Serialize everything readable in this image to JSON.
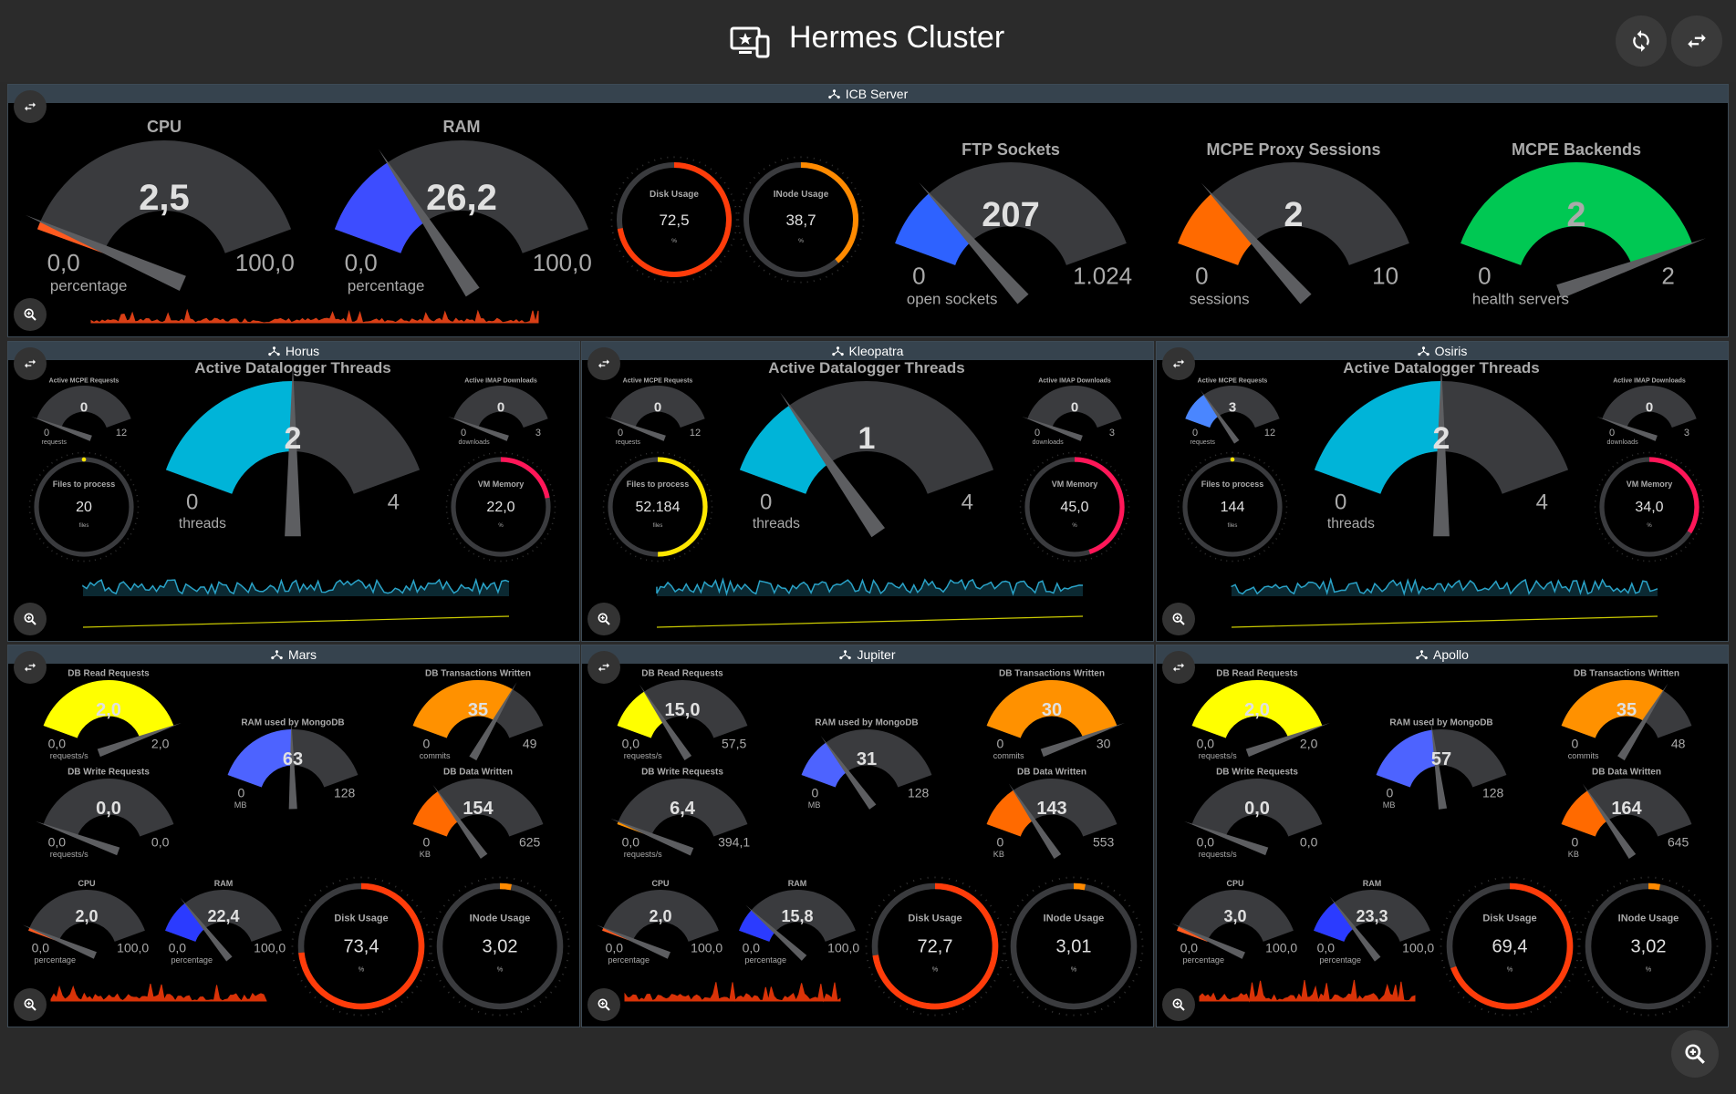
{
  "app": {
    "title": "Hermes Cluster"
  },
  "colors": {
    "track": "#3a3b3e",
    "needle": "#5d5e61",
    "bg": "#000000",
    "header": "#36434e"
  },
  "icb": {
    "title": "ICB Server",
    "cpu": {
      "title": "CPU",
      "value": "2,5",
      "min": "0,0",
      "max": "100,0",
      "unit": "percentage",
      "frac": 0.025,
      "color": "#ff5a1f"
    },
    "ram": {
      "title": "RAM",
      "value": "26,2",
      "min": "0,0",
      "max": "100,0",
      "unit": "percentage",
      "frac": 0.262,
      "color": "#3d4dff"
    },
    "disk": {
      "title": "Disk Usage",
      "value": "72,5",
      "unit": "%",
      "frac": 0.725,
      "color": "#ff3c0a"
    },
    "inode": {
      "title": "INode Usage",
      "value": "38,7",
      "unit": "%",
      "frac": 0.387,
      "color": "#ff8a00"
    },
    "ftp": {
      "title": "FTP Sockets",
      "value": "207",
      "min": "0",
      "max": "1.024",
      "unit": "open sockets",
      "frac": 0.202,
      "color": "#2e62ff"
    },
    "proxy": {
      "title": "MCPE Proxy Sessions",
      "value": "2",
      "min": "0",
      "max": "10",
      "unit": "sessions",
      "frac": 0.2,
      "color": "#ff6a00"
    },
    "backends": {
      "title": "MCPE Backends",
      "value": "2",
      "min": "0",
      "max": "2",
      "unit": "health servers",
      "frac": 1.0,
      "color": "#00c853"
    }
  },
  "loggers": [
    {
      "title": "Horus",
      "mcpe": {
        "title": "Active MCPE Requests",
        "value": "0",
        "min": "0",
        "max": "12",
        "unit": "requests",
        "frac": 0.0,
        "color": "#3f7bff"
      },
      "imap": {
        "title": "Active IMAP Downloads",
        "value": "0",
        "min": "0",
        "max": "3",
        "unit": "downloads",
        "frac": 0.0,
        "color": "#3f7bff"
      },
      "threads": {
        "title": "Active Datalogger Threads",
        "value": "2",
        "min": "0",
        "max": "4",
        "unit": "threads",
        "frac": 0.5,
        "color": "#00b4d8"
      },
      "files": {
        "title": "Files to process",
        "value": "20",
        "unit": "files",
        "frac": 0.0,
        "color": "#ffe600"
      },
      "vm": {
        "title": "VM Memory",
        "value": "22,0",
        "unit": "%",
        "frac": 0.22,
        "color": "#ff1658"
      }
    },
    {
      "title": "Kleopatra",
      "mcpe": {
        "title": "Active MCPE Requests",
        "value": "0",
        "min": "0",
        "max": "12",
        "unit": "requests",
        "frac": 0.0,
        "color": "#3f7bff"
      },
      "imap": {
        "title": "Active IMAP Downloads",
        "value": "0",
        "min": "0",
        "max": "3",
        "unit": "downloads",
        "frac": 0.0,
        "color": "#3f7bff"
      },
      "threads": {
        "title": "Active Datalogger Threads",
        "value": "1",
        "min": "0",
        "max": "4",
        "unit": "threads",
        "frac": 0.25,
        "color": "#00b4d8"
      },
      "files": {
        "title": "Files to process",
        "value": "52.184",
        "unit": "files",
        "frac": 0.5,
        "color": "#ffe600"
      },
      "vm": {
        "title": "VM Memory",
        "value": "45,0",
        "unit": "%",
        "frac": 0.45,
        "color": "#ff1658"
      }
    },
    {
      "title": "Osiris",
      "mcpe": {
        "title": "Active MCPE Requests",
        "value": "3",
        "min": "0",
        "max": "12",
        "unit": "requests",
        "frac": 0.25,
        "color": "#4a86ff"
      },
      "imap": {
        "title": "Active IMAP Downloads",
        "value": "0",
        "min": "0",
        "max": "3",
        "unit": "downloads",
        "frac": 0.0,
        "color": "#3f7bff"
      },
      "threads": {
        "title": "Active Datalogger Threads",
        "value": "2",
        "min": "0",
        "max": "4",
        "unit": "threads",
        "frac": 0.5,
        "color": "#00b4d8"
      },
      "files": {
        "title": "Files to process",
        "value": "144",
        "unit": "files",
        "frac": 0.0,
        "color": "#ffe600"
      },
      "vm": {
        "title": "VM Memory",
        "value": "34,0",
        "unit": "%",
        "frac": 0.34,
        "color": "#ff1658"
      }
    }
  ],
  "dbs": [
    {
      "title": "Mars",
      "dbread": {
        "title": "DB Read Requests",
        "value": "2,0",
        "min": "0,0",
        "max": "2,0",
        "unit": "requests/s",
        "frac": 1.0,
        "color": "#ffff00"
      },
      "dbtx": {
        "title": "DB Transactions Written",
        "value": "35",
        "min": "0",
        "max": "49",
        "unit": "commits",
        "frac": 0.714,
        "color": "#ff9100"
      },
      "mongo": {
        "title": "RAM used by MongoDB",
        "value": "63",
        "min": "0",
        "max": "128",
        "unit": "MB",
        "frac": 0.492,
        "color": "#4d63ff"
      },
      "dbwrite": {
        "title": "DB Write Requests",
        "value": "0,0",
        "min": "0,0",
        "max": "0,0",
        "unit": "requests/s",
        "frac": 0.0,
        "color": "#ff9100"
      },
      "dbdata": {
        "title": "DB Data Written",
        "value": "154",
        "min": "0",
        "max": "625",
        "unit": "KB",
        "frac": 0.246,
        "color": "#ff6a00"
      },
      "cpu": {
        "title": "CPU",
        "value": "2,0",
        "min": "0,0",
        "max": "100,0",
        "unit": "percentage",
        "frac": 0.02,
        "color": "#ff5a1f"
      },
      "ram": {
        "title": "RAM",
        "value": "22,4",
        "min": "0,0",
        "max": "100,0",
        "unit": "percentage",
        "frac": 0.224,
        "color": "#2b3bff"
      },
      "disk": {
        "title": "Disk Usage",
        "value": "73,4",
        "unit": "%",
        "frac": 0.734,
        "color": "#ff3c0a"
      },
      "inode": {
        "title": "INode Usage",
        "value": "3,02",
        "unit": "%",
        "frac": 0.03,
        "color": "#ff8a00"
      }
    },
    {
      "title": "Jupiter",
      "dbread": {
        "title": "DB Read Requests",
        "value": "15,0",
        "min": "0,0",
        "max": "57,5",
        "unit": "requests/s",
        "frac": 0.261,
        "color": "#ffff00"
      },
      "dbtx": {
        "title": "DB Transactions Written",
        "value": "30",
        "min": "0",
        "max": "30",
        "unit": "commits",
        "frac": 1.0,
        "color": "#ff9100"
      },
      "mongo": {
        "title": "RAM used by MongoDB",
        "value": "31",
        "min": "0",
        "max": "128",
        "unit": "MB",
        "frac": 0.242,
        "color": "#4d63ff"
      },
      "dbwrite": {
        "title": "DB Write Requests",
        "value": "6,4",
        "min": "0,0",
        "max": "394,1",
        "unit": "requests/s",
        "frac": 0.016,
        "color": "#ff9100"
      },
      "dbdata": {
        "title": "DB Data Written",
        "value": "143",
        "min": "0",
        "max": "553",
        "unit": "KB",
        "frac": 0.259,
        "color": "#ff6a00"
      },
      "cpu": {
        "title": "CPU",
        "value": "2,0",
        "min": "0,0",
        "max": "100,0",
        "unit": "percentage",
        "frac": 0.02,
        "color": "#ff5a1f"
      },
      "ram": {
        "title": "RAM",
        "value": "15,8",
        "min": "0,0",
        "max": "100,0",
        "unit": "percentage",
        "frac": 0.158,
        "color": "#2b3bff"
      },
      "disk": {
        "title": "Disk Usage",
        "value": "72,7",
        "unit": "%",
        "frac": 0.727,
        "color": "#ff3c0a"
      },
      "inode": {
        "title": "INode Usage",
        "value": "3,01",
        "unit": "%",
        "frac": 0.03,
        "color": "#ff8a00"
      }
    },
    {
      "title": "Apollo",
      "dbread": {
        "title": "DB Read Requests",
        "value": "2,0",
        "min": "0,0",
        "max": "2,0",
        "unit": "requests/s",
        "frac": 1.0,
        "color": "#ffff00"
      },
      "dbtx": {
        "title": "DB Transactions Written",
        "value": "35",
        "min": "0",
        "max": "48",
        "unit": "commits",
        "frac": 0.729,
        "color": "#ff9100"
      },
      "mongo": {
        "title": "RAM used by MongoDB",
        "value": "57",
        "min": "0",
        "max": "128",
        "unit": "MB",
        "frac": 0.445,
        "color": "#4d63ff"
      },
      "dbwrite": {
        "title": "DB Write Requests",
        "value": "0,0",
        "min": "0,0",
        "max": "0,0",
        "unit": "requests/s",
        "frac": 0.0,
        "color": "#ff9100"
      },
      "dbdata": {
        "title": "DB Data Written",
        "value": "164",
        "min": "0",
        "max": "645",
        "unit": "KB",
        "frac": 0.254,
        "color": "#ff6a00"
      },
      "cpu": {
        "title": "CPU",
        "value": "3,0",
        "min": "0,0",
        "max": "100,0",
        "unit": "percentage",
        "frac": 0.03,
        "color": "#ff5a1f"
      },
      "ram": {
        "title": "RAM",
        "value": "23,3",
        "min": "0,0",
        "max": "100,0",
        "unit": "percentage",
        "frac": 0.233,
        "color": "#2b3bff"
      },
      "disk": {
        "title": "Disk Usage",
        "value": "69,4",
        "unit": "%",
        "frac": 0.694,
        "color": "#ff3c0a"
      },
      "inode": {
        "title": "INode Usage",
        "value": "3,02",
        "unit": "%",
        "frac": 0.03,
        "color": "#ff8a00"
      }
    }
  ]
}
